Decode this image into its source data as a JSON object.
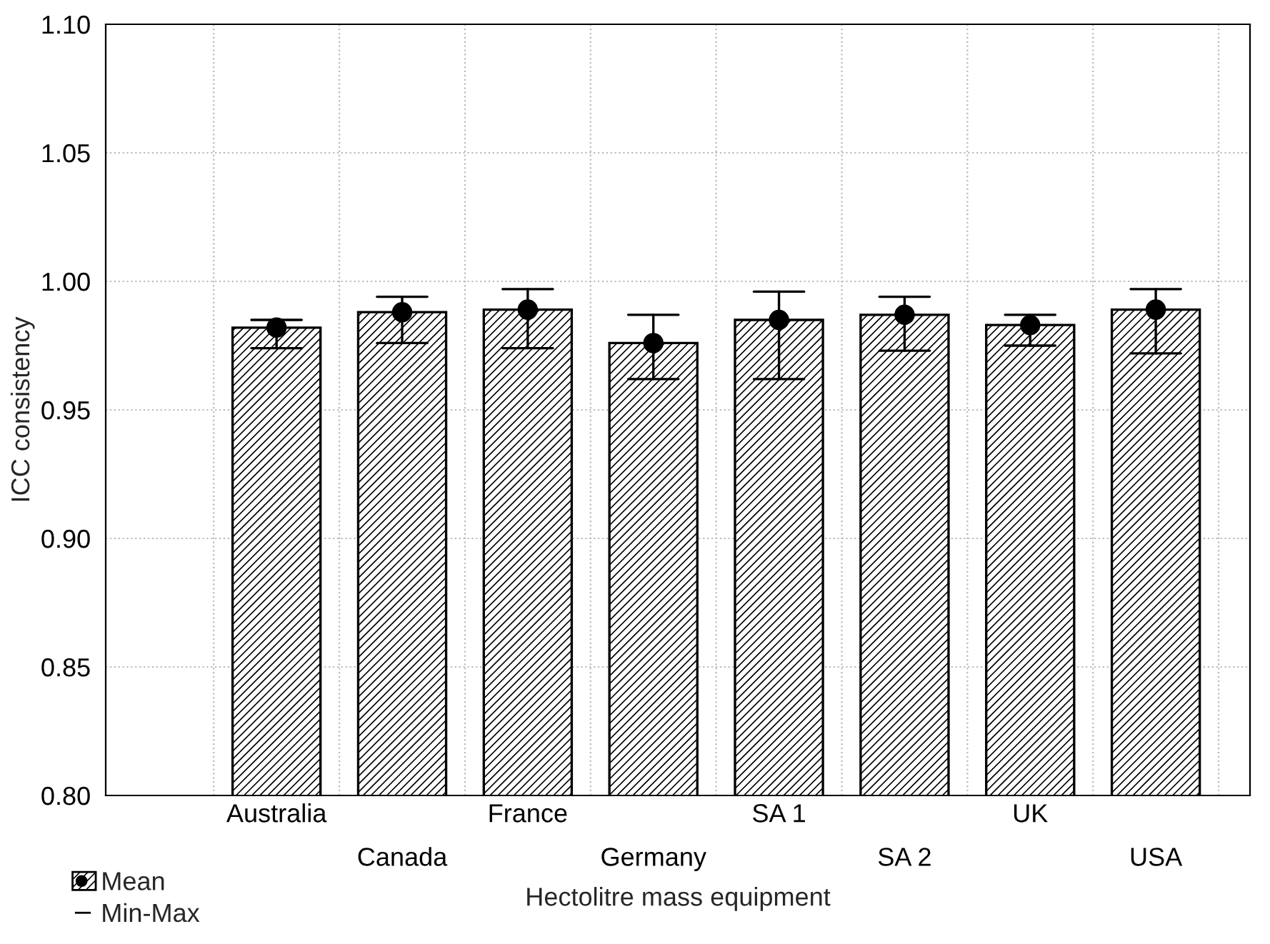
{
  "chart_data": {
    "type": "bar",
    "xlabel": "Hectolitre mass equipment",
    "ylabel": "ICC consistency",
    "categories": [
      "Australia",
      "Canada",
      "France",
      "Germany",
      "SA 1",
      "SA 2",
      "UK",
      "USA"
    ],
    "series": [
      {
        "name": "Mean",
        "color": "#000000",
        "values": [
          0.982,
          0.988,
          0.989,
          0.976,
          0.985,
          0.987,
          0.983,
          0.989
        ],
        "errors": [
          [
            0.974,
            0.985
          ],
          [
            0.976,
            0.994
          ],
          [
            0.974,
            0.997
          ],
          [
            0.962,
            0.987
          ],
          [
            0.962,
            0.996
          ],
          [
            0.973,
            0.994
          ],
          [
            0.975,
            0.987
          ],
          [
            0.972,
            0.997
          ]
        ]
      },
      {
        "type": "scatter",
        "color": "#000000",
        "values": [
          0.982,
          0.988,
          0.989,
          0.976,
          0.985,
          0.987,
          0.983,
          0.989
        ]
      }
    ],
    "annotations": [
      "Min-Max"
    ],
    "ylim": [
      0.8,
      1.1
    ],
    "yticks": [
      {
        "value": 0.8,
        "label": "0.80"
      },
      {
        "value": 0.85,
        "label": "0.85"
      },
      {
        "value": 0.9,
        "label": "0.90"
      },
      {
        "value": 0.95,
        "label": "0.95"
      },
      {
        "value": 1.0,
        "label": "1.00"
      },
      {
        "value": 1.05,
        "label": "1.05"
      },
      {
        "value": 1.1,
        "label": "1.10"
      }
    ],
    "grid": true,
    "legend": "bottom left",
    "marker": "circle"
  }
}
